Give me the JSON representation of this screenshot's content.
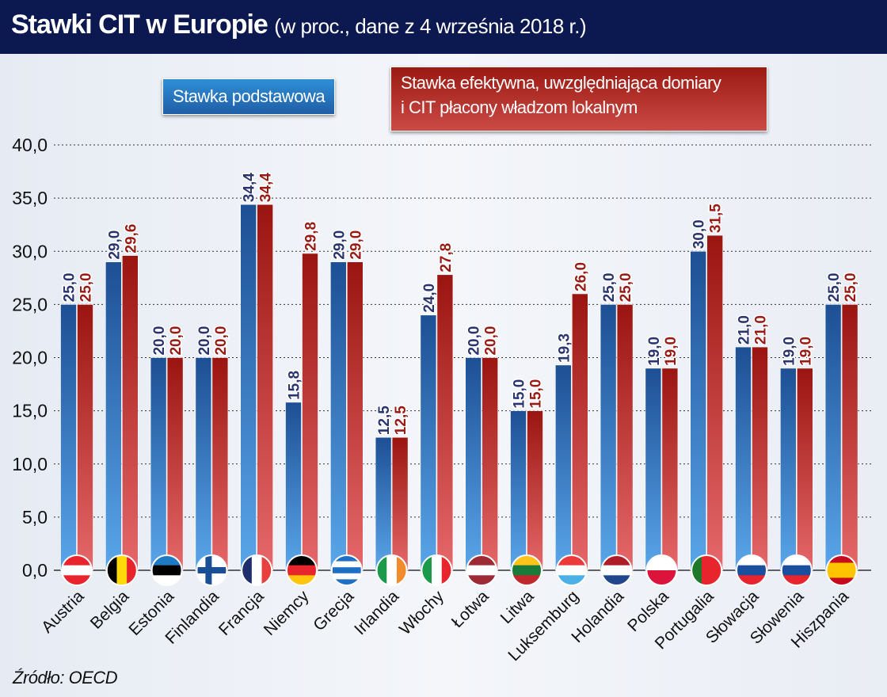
{
  "chart_data": {
    "type": "bar",
    "title": "Stawki CIT w Europie",
    "subtitle": "(w proc., dane z 4 września 2018 r.)",
    "categories": [
      "Austria",
      "Belgia",
      "Estonia",
      "Finlandia",
      "Francja",
      "Niemcy",
      "Grecja",
      "Irlandia",
      "Włochy",
      "Łotwa",
      "Litwa",
      "Luksemburg",
      "Holandia",
      "Polska",
      "Portugalia",
      "Słowacja",
      "Słowenia",
      "Hiszpania"
    ],
    "series": [
      {
        "name": "Stawka podstawowa",
        "color": "#2b6fb8",
        "values": [
          25.0,
          29.0,
          20.0,
          20.0,
          34.4,
          15.8,
          29.0,
          12.5,
          24.0,
          20.0,
          15.0,
          19.3,
          25.0,
          19.0,
          30.0,
          21.0,
          19.0,
          25.0
        ]
      },
      {
        "name": "Stawka efektywna, uwzględniająca domiary i CIT płacony władzom lokalnym",
        "name_line1": "Stawka efektywna, uwzględniająca domiary",
        "name_line2": "i CIT płacony władzom lokalnym",
        "color": "#b02a24",
        "values": [
          25.0,
          29.6,
          20.0,
          20.0,
          34.4,
          29.8,
          29.0,
          12.5,
          27.8,
          20.0,
          15.0,
          26.0,
          25.0,
          19.0,
          31.5,
          21.0,
          19.0,
          25.0
        ]
      }
    ],
    "ylim": [
      0,
      40
    ],
    "yticks": [
      "0,0",
      "5,0",
      "10,0",
      "15,0",
      "20,0",
      "25,0",
      "30,0",
      "35,0",
      "40,0"
    ],
    "grid": true,
    "legend_placement": "top",
    "source": "Źródło: OECD",
    "flags": [
      {
        "dir": "h",
        "colors": [
          "#e8242c",
          "#ffffff",
          "#e8242c"
        ]
      },
      {
        "dir": "v",
        "colors": [
          "#000000",
          "#ffd90c",
          "#e8242c"
        ]
      },
      {
        "dir": "h",
        "colors": [
          "#1f7ac4",
          "#000000",
          "#ffffff"
        ]
      },
      {
        "dir": "cross",
        "colors": [
          "#ffffff",
          "#1a4f96"
        ]
      },
      {
        "dir": "v",
        "colors": [
          "#1f2f6e",
          "#ffffff",
          "#e8413d"
        ]
      },
      {
        "dir": "h",
        "colors": [
          "#000000",
          "#e8242c",
          "#ffc40c"
        ]
      },
      {
        "dir": "h",
        "colors": [
          "#1f6fc4",
          "#ffffff",
          "#1f6fc4",
          "#ffffff",
          "#1f6fc4"
        ]
      },
      {
        "dir": "v",
        "colors": [
          "#1a9a4a",
          "#ffffff",
          "#f28b2c"
        ]
      },
      {
        "dir": "v",
        "colors": [
          "#1a9a4a",
          "#ffffff",
          "#e8242c"
        ]
      },
      {
        "dir": "h",
        "colors": [
          "#9e2a35",
          "#ffffff",
          "#9e2a35"
        ]
      },
      {
        "dir": "h",
        "colors": [
          "#fcc419",
          "#1a7a3a",
          "#c1272d"
        ]
      },
      {
        "dir": "h",
        "colors": [
          "#ec3a3a",
          "#ffffff",
          "#4ab0e6"
        ]
      },
      {
        "dir": "h",
        "colors": [
          "#ae1c28",
          "#ffffff",
          "#21468b"
        ]
      },
      {
        "dir": "h",
        "colors": [
          "#ffffff",
          "#dc143c"
        ]
      },
      {
        "dir": "v",
        "colors": [
          "#1a7a2a",
          "#e8242c",
          "#e8242c"
        ]
      },
      {
        "dir": "h",
        "colors": [
          "#ffffff",
          "#1a4fa0",
          "#e8242c"
        ]
      },
      {
        "dir": "h",
        "colors": [
          "#ffffff",
          "#1a4fa0",
          "#e8242c"
        ]
      },
      {
        "dir": "h",
        "colors": [
          "#c60b1e",
          "#ffc400",
          "#ffc400",
          "#c60b1e"
        ]
      }
    ]
  }
}
